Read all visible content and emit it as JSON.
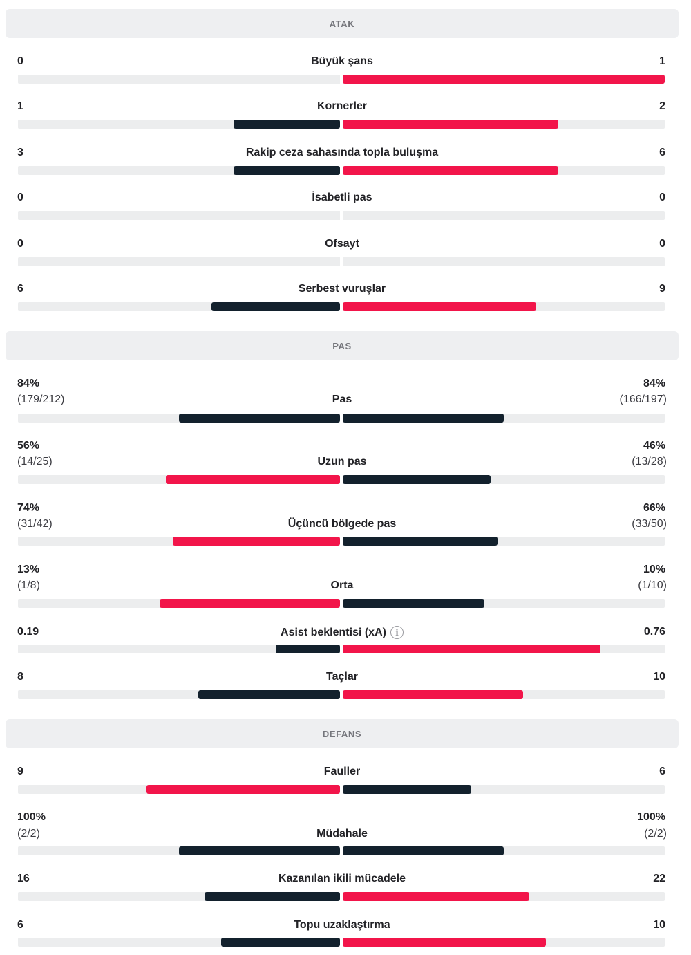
{
  "colors": {
    "highlight": "#f2154a",
    "dark": "#13212d",
    "track": "#ecedee",
    "header_bg": "#eeeff1"
  },
  "sections": [
    {
      "title": "ATAK",
      "stats": [
        {
          "label": "Büyük şans",
          "home": "0",
          "away": "1",
          "home_fill": 0,
          "away_fill": 1.0,
          "home_color": "dark",
          "away_color": "red"
        },
        {
          "label": "Kornerler",
          "home": "1",
          "away": "2",
          "home_fill": 0.33,
          "away_fill": 0.67,
          "home_color": "dark",
          "away_color": "red"
        },
        {
          "label": "Rakip ceza sahasında topla buluşma",
          "home": "3",
          "away": "6",
          "home_fill": 0.33,
          "away_fill": 0.67,
          "home_color": "dark",
          "away_color": "red"
        },
        {
          "label": "İsabetli pas",
          "home": "0",
          "away": "0",
          "home_fill": 0,
          "away_fill": 0,
          "home_color": "dark",
          "away_color": "red"
        },
        {
          "label": "Ofsayt",
          "home": "0",
          "away": "0",
          "home_fill": 0,
          "away_fill": 0,
          "home_color": "dark",
          "away_color": "red"
        },
        {
          "label": "Serbest vuruşlar",
          "home": "6",
          "away": "9",
          "home_fill": 0.4,
          "away_fill": 0.6,
          "home_color": "dark",
          "away_color": "red"
        }
      ]
    },
    {
      "title": "PAS",
      "stats": [
        {
          "label": "Pas",
          "home": "84%",
          "home_sub": "(179/212)",
          "away": "84%",
          "away_sub": "(166/197)",
          "home_fill": 0.5,
          "away_fill": 0.5,
          "home_color": "dark",
          "away_color": "dark"
        },
        {
          "label": "Uzun pas",
          "home": "56%",
          "home_sub": "(14/25)",
          "away": "46%",
          "away_sub": "(13/28)",
          "home_fill": 0.54,
          "away_fill": 0.46,
          "home_color": "red",
          "away_color": "dark"
        },
        {
          "label": "Üçüncü bölgede pas",
          "home": "74%",
          "home_sub": "(31/42)",
          "away": "66%",
          "away_sub": "(33/50)",
          "home_fill": 0.52,
          "away_fill": 0.48,
          "home_color": "red",
          "away_color": "dark"
        },
        {
          "label": "Orta",
          "home": "13%",
          "home_sub": "(1/8)",
          "away": "10%",
          "away_sub": "(1/10)",
          "home_fill": 0.56,
          "away_fill": 0.44,
          "home_color": "red",
          "away_color": "dark"
        },
        {
          "label": "Asist beklentisi (xA)",
          "info": true,
          "home": "0.19",
          "away": "0.76",
          "home_fill": 0.2,
          "away_fill": 0.8,
          "home_color": "dark",
          "away_color": "red"
        },
        {
          "label": "Taçlar",
          "home": "8",
          "away": "10",
          "home_fill": 0.44,
          "away_fill": 0.56,
          "home_color": "dark",
          "away_color": "red"
        }
      ]
    },
    {
      "title": "DEFANS",
      "stats": [
        {
          "label": "Fauller",
          "home": "9",
          "away": "6",
          "home_fill": 0.6,
          "away_fill": 0.4,
          "home_color": "red",
          "away_color": "dark"
        },
        {
          "label": "Müdahale",
          "home": "100%",
          "home_sub": "(2/2)",
          "away": "100%",
          "away_sub": "(2/2)",
          "home_fill": 0.5,
          "away_fill": 0.5,
          "home_color": "dark",
          "away_color": "dark"
        },
        {
          "label": "Kazanılan ikili mücadele",
          "home": "16",
          "away": "22",
          "home_fill": 0.42,
          "away_fill": 0.58,
          "home_color": "dark",
          "away_color": "red"
        },
        {
          "label": "Topu uzaklaştırma",
          "home": "6",
          "away": "10",
          "home_fill": 0.37,
          "away_fill": 0.63,
          "home_color": "dark",
          "away_color": "red"
        }
      ]
    }
  ]
}
